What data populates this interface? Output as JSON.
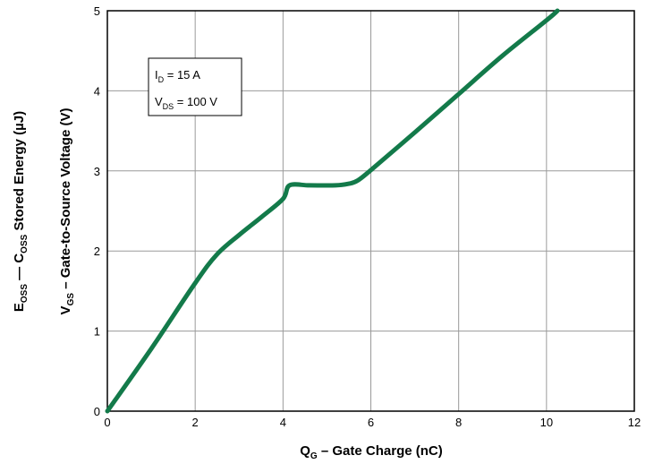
{
  "chart_data": {
    "type": "line",
    "xlabel": {
      "main": "Q",
      "sub": "G",
      "rest": " – Gate Charge (nC)"
    },
    "ylabel": {
      "main": "V",
      "sub": "GS",
      "rest": " – Gate-to-Source Voltage (V)"
    },
    "ylabel2": {
      "main1": "E",
      "sub1": "OSS",
      "mid": " — C",
      "sub2": "OSS",
      "rest": " Stored Energy  (µJ)"
    },
    "xlim": [
      0,
      12
    ],
    "ylim": [
      0,
      5
    ],
    "xticks": [
      "0",
      "2",
      "4",
      "6",
      "8",
      "10",
      "12"
    ],
    "yticks": [
      "0",
      "1",
      "2",
      "3",
      "4",
      "5"
    ],
    "grid": true,
    "line_color": "#137a4a",
    "annotation": {
      "line1": {
        "main": "I",
        "sub": "D",
        "rest": " = 15 A"
      },
      "line2": {
        "main": "V",
        "sub": "DS",
        "rest": " = 100 V"
      }
    },
    "series": [
      {
        "x": [
          0,
          1,
          2,
          2.5,
          3,
          3.5,
          4,
          4.15,
          4.6,
          5.2,
          5.5,
          5.7,
          6,
          7,
          8,
          9,
          10,
          10.25
        ],
        "y": [
          0,
          0.78,
          1.6,
          1.96,
          2.2,
          2.42,
          2.65,
          2.82,
          2.82,
          2.82,
          2.84,
          2.88,
          3.01,
          3.48,
          3.96,
          4.44,
          4.88,
          5.0
        ]
      }
    ]
  }
}
